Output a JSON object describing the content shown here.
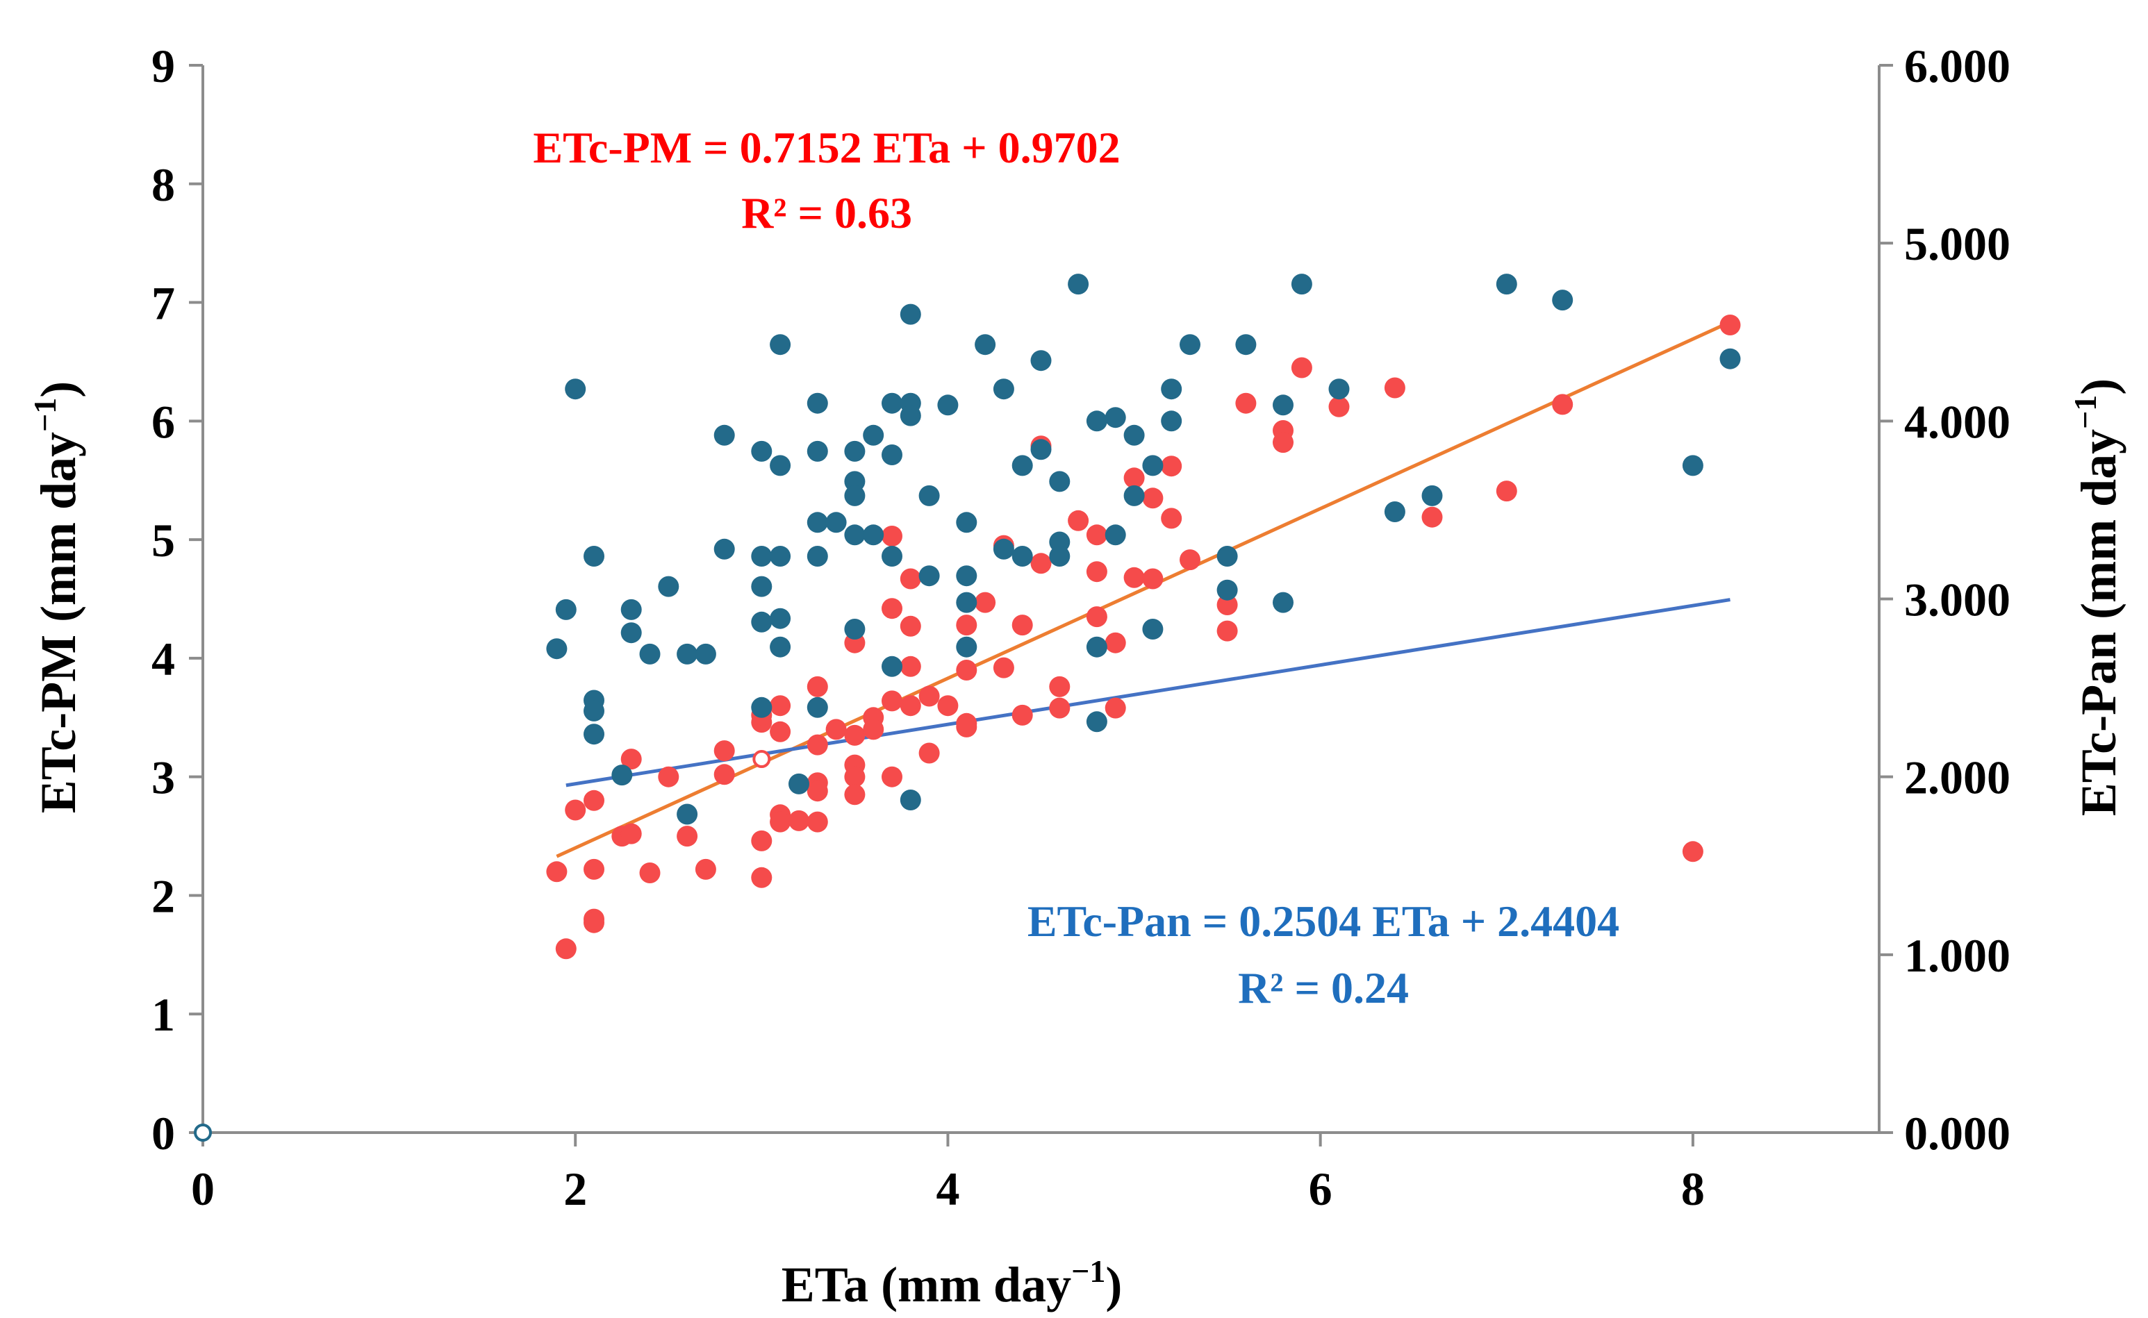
{
  "chart_data": {
    "type": "scatter",
    "x_axis": {
      "label_main": "ETa (mm day",
      "label_sup": "−1",
      "label_end": ")",
      "range": [
        0,
        9
      ],
      "ticks": [
        0,
        2,
        4,
        6,
        8
      ],
      "tick_labels": [
        "0",
        "2",
        "4",
        "6",
        "8"
      ]
    },
    "y_axis_left": {
      "label_main": "ETc-PM (mm day",
      "label_sup": "−1",
      "label_end": ")",
      "range": [
        0,
        9
      ],
      "ticks": [
        0,
        1,
        2,
        3,
        4,
        5,
        6,
        7,
        8,
        9
      ],
      "tick_labels": [
        "0",
        "1",
        "2",
        "3",
        "4",
        "5",
        "6",
        "7",
        "8",
        "9"
      ]
    },
    "y_axis_right": {
      "label_main": "ETc-Pan (mm day",
      "label_sup": "−1",
      "label_end": ")",
      "range": [
        0,
        6
      ],
      "ticks": [
        0,
        1,
        2,
        3,
        4,
        5,
        6
      ],
      "tick_labels": [
        "0.000",
        "1.000",
        "2.000",
        "3.000",
        "4.000",
        "5.000",
        "6.000"
      ]
    },
    "annotations": {
      "pm_equation": "ETc-PM = 0.7152 ETa + 0.9702",
      "pm_r2": "R² = 0.63",
      "pan_equation": "ETc-Pan = 0.2504 ETa + 2.4404",
      "pan_r2": "R² = 0.24"
    },
    "series": [
      {
        "name": "ETc-PM",
        "axis": "left",
        "color": "#f54b4b",
        "trendline": {
          "slope": 0.7152,
          "intercept": 0.9702,
          "x_range": [
            1.9,
            8.2
          ],
          "color": "#ed7d31"
        },
        "points": [
          [
            1.9,
            2.2
          ],
          [
            1.95,
            1.55
          ],
          [
            2.0,
            2.72
          ],
          [
            2.1,
            2.8
          ],
          [
            2.1,
            2.22
          ],
          [
            2.1,
            1.8
          ],
          [
            2.1,
            1.77
          ],
          [
            2.25,
            2.5
          ],
          [
            2.3,
            3.15
          ],
          [
            2.3,
            2.52
          ],
          [
            2.4,
            2.19
          ],
          [
            2.5,
            3.0
          ],
          [
            2.6,
            2.5
          ],
          [
            2.7,
            2.22
          ],
          [
            2.8,
            3.22
          ],
          [
            2.8,
            3.02
          ],
          [
            3.0,
            3.46
          ],
          [
            3.0,
            3.52
          ],
          [
            3.0,
            2.46
          ],
          [
            3.0,
            2.15
          ],
          [
            3.1,
            3.6
          ],
          [
            3.1,
            3.38
          ],
          [
            3.1,
            2.68
          ],
          [
            3.1,
            2.62
          ],
          [
            3.2,
            2.63
          ],
          [
            3.3,
            3.76
          ],
          [
            3.3,
            3.27
          ],
          [
            3.3,
            2.95
          ],
          [
            3.3,
            2.88
          ],
          [
            3.3,
            2.62
          ],
          [
            3.4,
            3.4
          ],
          [
            3.5,
            4.13
          ],
          [
            3.5,
            3.35
          ],
          [
            3.5,
            3.1
          ],
          [
            3.5,
            3.0
          ],
          [
            3.5,
            2.85
          ],
          [
            3.6,
            3.5
          ],
          [
            3.6,
            3.4
          ],
          [
            3.7,
            5.03
          ],
          [
            3.7,
            4.42
          ],
          [
            3.7,
            3.64
          ],
          [
            3.7,
            3.0
          ],
          [
            3.8,
            4.67
          ],
          [
            3.8,
            4.27
          ],
          [
            3.8,
            3.93
          ],
          [
            3.8,
            3.6
          ],
          [
            3.9,
            3.68
          ],
          [
            3.9,
            3.2
          ],
          [
            4.0,
            3.6
          ],
          [
            4.1,
            4.28
          ],
          [
            4.1,
            3.9
          ],
          [
            4.1,
            3.45
          ],
          [
            4.1,
            3.42
          ],
          [
            4.2,
            4.47
          ],
          [
            4.3,
            4.95
          ],
          [
            4.3,
            3.92
          ],
          [
            4.4,
            4.28
          ],
          [
            4.4,
            3.52
          ],
          [
            4.5,
            5.79
          ],
          [
            4.5,
            4.8
          ],
          [
            4.6,
            3.76
          ],
          [
            4.6,
            3.58
          ],
          [
            4.7,
            5.16
          ],
          [
            4.8,
            5.04
          ],
          [
            4.8,
            4.73
          ],
          [
            4.8,
            4.35
          ],
          [
            4.9,
            4.13
          ],
          [
            4.9,
            3.58
          ],
          [
            5.0,
            5.52
          ],
          [
            5.0,
            4.68
          ],
          [
            5.1,
            5.35
          ],
          [
            5.1,
            4.67
          ],
          [
            5.2,
            5.62
          ],
          [
            5.2,
            5.18
          ],
          [
            5.3,
            4.83
          ],
          [
            5.5,
            4.45
          ],
          [
            5.5,
            4.23
          ],
          [
            5.6,
            6.15
          ],
          [
            5.8,
            5.92
          ],
          [
            5.8,
            5.82
          ],
          [
            5.9,
            6.45
          ],
          [
            6.1,
            6.12
          ],
          [
            6.4,
            6.28
          ],
          [
            6.6,
            5.19
          ],
          [
            7.0,
            5.41
          ],
          [
            7.3,
            6.14
          ],
          [
            8.0,
            2.37
          ],
          [
            8.2,
            6.81
          ]
        ]
      },
      {
        "name": "ETc-Pan",
        "axis": "right",
        "color": "#236a8a",
        "trendline": {
          "slope": 0.2504,
          "intercept": 2.4404,
          "x_range": [
            1.95,
            8.2
          ],
          "color": "#4472c4"
        },
        "points": [
          [
            1.9,
            2.72
          ],
          [
            1.95,
            2.94
          ],
          [
            2.0,
            4.18
          ],
          [
            2.1,
            3.24
          ],
          [
            2.1,
            2.43
          ],
          [
            2.1,
            2.37
          ],
          [
            2.1,
            2.24
          ],
          [
            2.25,
            2.01
          ],
          [
            2.3,
            2.94
          ],
          [
            2.3,
            2.81
          ],
          [
            2.4,
            2.69
          ],
          [
            2.5,
            3.07
          ],
          [
            2.6,
            2.69
          ],
          [
            2.6,
            1.79
          ],
          [
            2.7,
            2.69
          ],
          [
            2.8,
            3.92
          ],
          [
            2.8,
            3.28
          ],
          [
            3.0,
            3.83
          ],
          [
            3.0,
            3.24
          ],
          [
            3.0,
            3.07
          ],
          [
            3.0,
            2.87
          ],
          [
            3.0,
            2.39
          ],
          [
            3.1,
            4.43
          ],
          [
            3.1,
            3.75
          ],
          [
            3.1,
            3.24
          ],
          [
            3.1,
            2.89
          ],
          [
            3.1,
            2.73
          ],
          [
            3.2,
            1.96
          ],
          [
            3.3,
            4.1
          ],
          [
            3.3,
            3.83
          ],
          [
            3.3,
            3.43
          ],
          [
            3.3,
            3.24
          ],
          [
            3.3,
            2.39
          ],
          [
            3.4,
            3.43
          ],
          [
            3.5,
            3.83
          ],
          [
            3.5,
            3.66
          ],
          [
            3.5,
            3.58
          ],
          [
            3.5,
            3.36
          ],
          [
            3.5,
            2.83
          ],
          [
            3.6,
            3.92
          ],
          [
            3.6,
            3.36
          ],
          [
            3.7,
            4.1
          ],
          [
            3.7,
            3.81
          ],
          [
            3.7,
            3.24
          ],
          [
            3.7,
            2.62
          ],
          [
            3.8,
            4.6
          ],
          [
            3.8,
            4.1
          ],
          [
            3.8,
            4.03
          ],
          [
            3.8,
            1.87
          ],
          [
            3.9,
            3.58
          ],
          [
            3.9,
            3.13
          ],
          [
            4.0,
            4.09
          ],
          [
            4.1,
            3.43
          ],
          [
            4.1,
            3.13
          ],
          [
            4.1,
            2.98
          ],
          [
            4.1,
            2.73
          ],
          [
            4.2,
            4.43
          ],
          [
            4.3,
            4.18
          ],
          [
            4.3,
            3.28
          ],
          [
            4.4,
            3.75
          ],
          [
            4.4,
            3.24
          ],
          [
            4.5,
            4.34
          ],
          [
            4.5,
            3.84
          ],
          [
            4.6,
            3.66
          ],
          [
            4.6,
            3.32
          ],
          [
            4.6,
            3.24
          ],
          [
            4.7,
            4.77
          ],
          [
            4.8,
            4.0
          ],
          [
            4.8,
            2.73
          ],
          [
            4.8,
            2.31
          ],
          [
            4.9,
            4.02
          ],
          [
            4.9,
            3.36
          ],
          [
            5.0,
            3.92
          ],
          [
            5.0,
            3.58
          ],
          [
            5.1,
            3.75
          ],
          [
            5.1,
            2.83
          ],
          [
            5.2,
            4.18
          ],
          [
            5.2,
            4.0
          ],
          [
            5.3,
            4.43
          ],
          [
            5.5,
            3.24
          ],
          [
            5.5,
            3.05
          ],
          [
            5.6,
            4.43
          ],
          [
            5.8,
            4.09
          ],
          [
            5.8,
            2.98
          ],
          [
            5.9,
            4.77
          ],
          [
            6.1,
            4.18
          ],
          [
            6.4,
            3.49
          ],
          [
            6.6,
            3.58
          ],
          [
            7.0,
            4.77
          ],
          [
            7.3,
            4.68
          ],
          [
            8.0,
            3.75
          ],
          [
            8.2,
            4.35
          ]
        ]
      }
    ],
    "extra_points": [
      {
        "x": 0,
        "y": 0,
        "axis": "left",
        "style": "hollow-blue"
      },
      {
        "x": 3.0,
        "y": 3.15,
        "axis": "left",
        "style": "hollow-red"
      }
    ]
  }
}
